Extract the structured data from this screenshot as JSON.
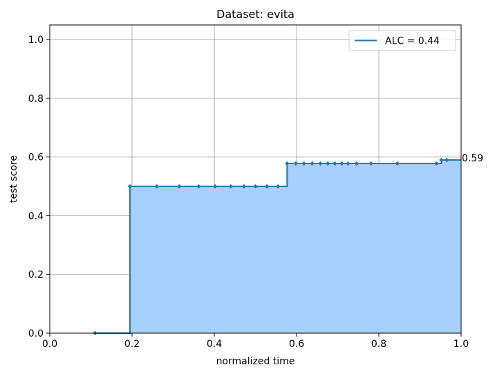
{
  "chart_data": {
    "type": "line",
    "title": "Dataset: evita",
    "xlabel": "normalized time",
    "ylabel": "test score",
    "xlim": [
      0,
      1
    ],
    "ylim": [
      0,
      1.05
    ],
    "xticks": [
      "0.0",
      "0.2",
      "0.4",
      "0.6",
      "0.8",
      "1.0"
    ],
    "yticks": [
      "0.0",
      "0.2",
      "0.4",
      "0.6",
      "0.8",
      "1.0"
    ],
    "grid": true,
    "legend_position": "top-right",
    "step": "post",
    "fill_under_curve": true,
    "series": [
      {
        "name": "ALC = 0.44",
        "x": [
          0.11,
          0.195,
          0.26,
          0.315,
          0.362,
          0.402,
          0.44,
          0.472,
          0.5,
          0.528,
          0.555,
          0.577,
          0.598,
          0.618,
          0.638,
          0.658,
          0.676,
          0.693,
          0.71,
          0.725,
          0.746,
          0.781,
          0.845,
          0.94,
          0.952,
          0.965,
          1.0
        ],
        "y": [
          0.0,
          0.5,
          0.5,
          0.5,
          0.5,
          0.5,
          0.5,
          0.5,
          0.5,
          0.5,
          0.5,
          0.578,
          0.578,
          0.578,
          0.578,
          0.578,
          0.578,
          0.578,
          0.578,
          0.578,
          0.578,
          0.578,
          0.578,
          0.578,
          0.59,
          0.59,
          0.59
        ]
      }
    ],
    "end_annotation": "0.59",
    "colors": {
      "line": "#1f77b4",
      "fill": "#a6d1ff",
      "grid": "#b0b0b0"
    }
  }
}
